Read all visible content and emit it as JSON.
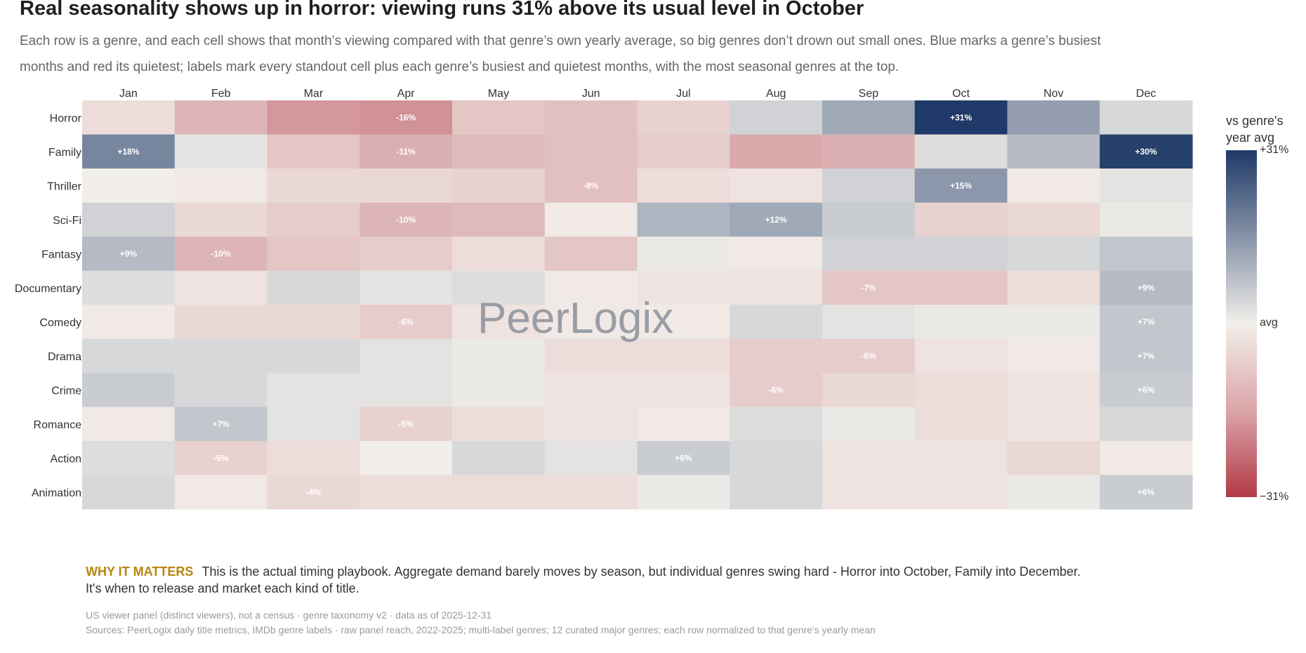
{
  "header": {
    "title": "Real seasonality shows up in horror: viewing runs 31% above its usual level in October",
    "subtitle": "Each row is a genre, and each cell shows that month’s viewing compared with that genre’s own yearly average, so big genres don’t drown out small ones. Blue marks a genre’s busiest months and red its quietest; labels mark every standout cell plus each genre’s busiest and quietest months, with the most seasonal genres at the top."
  },
  "watermark": "PeerLogix",
  "colors": {
    "max_blue": "#1f3a68",
    "neutral": "#f2efea",
    "min_red": "#b23a48",
    "label_text": "#ffffff"
  },
  "chart_data": {
    "type": "heatmap",
    "x_categories": [
      "Jan",
      "Feb",
      "Mar",
      "Apr",
      "May",
      "Jun",
      "Jul",
      "Aug",
      "Sep",
      "Oct",
      "Nov",
      "Dec"
    ],
    "y_categories": [
      "Horror",
      "Family",
      "Thriller",
      "Sci-Fi",
      "Fantasy",
      "Documentary",
      "Comedy",
      "Drama",
      "Crime",
      "Romance",
      "Action",
      "Animation"
    ],
    "values": [
      [
        -3,
        -10,
        -15,
        -16,
        -7,
        -8,
        -5,
        5,
        12,
        31,
        14,
        4
      ],
      [
        18,
        2,
        -7,
        -11,
        -9,
        -8,
        -6,
        -12,
        -11,
        3,
        9,
        30
      ],
      [
        0,
        -1,
        -4,
        -4,
        -5,
        -8,
        -3,
        -2,
        5,
        15,
        -1,
        2
      ],
      [
        5,
        -4,
        -6,
        -10,
        -9,
        -1,
        10,
        12,
        6,
        -5,
        -4,
        1
      ],
      [
        9,
        -10,
        -7,
        -6,
        -3,
        -7,
        1,
        -1,
        5,
        5,
        4,
        7
      ],
      [
        3,
        -2,
        4,
        2,
        3,
        -1,
        -2,
        -2,
        -7,
        -7,
        -3,
        9
      ],
      [
        -1,
        -4,
        -4,
        -6,
        -2,
        -1,
        -1,
        4,
        2,
        1,
        1,
        7
      ],
      [
        4,
        4,
        4,
        2,
        1,
        -3,
        -3,
        -6,
        -6,
        -2,
        -1,
        7
      ],
      [
        6,
        4,
        2,
        2,
        1,
        -2,
        -2,
        -6,
        -4,
        -3,
        -2,
        6
      ],
      [
        -1,
        7,
        2,
        -5,
        -3,
        -2,
        -1,
        3,
        1,
        -3,
        -2,
        4
      ],
      [
        3,
        -5,
        -3,
        0,
        4,
        2,
        6,
        4,
        -2,
        -2,
        -4,
        -1
      ],
      [
        4,
        -1,
        -4,
        -3,
        -3,
        -3,
        1,
        4,
        -2,
        -2,
        1,
        6
      ]
    ],
    "labels": [
      [
        "",
        "",
        "",
        "-16%",
        "",
        "",
        "",
        "",
        "",
        "+31%",
        "",
        ""
      ],
      [
        "+18%",
        "",
        "",
        "-11%",
        "",
        "",
        "",
        "",
        "",
        "",
        "",
        "+30%"
      ],
      [
        "",
        "",
        "",
        "",
        "",
        "-8%",
        "",
        "",
        "",
        "+15%",
        "",
        ""
      ],
      [
        "",
        "",
        "",
        "-10%",
        "",
        "",
        "",
        "+12%",
        "",
        "",
        "",
        ""
      ],
      [
        "+9%",
        "-10%",
        "",
        "",
        "",
        "",
        "",
        "",
        "",
        "",
        "",
        ""
      ],
      [
        "",
        "",
        "",
        "",
        "",
        "",
        "",
        "",
        "-7%",
        "",
        "",
        "+9%"
      ],
      [
        "",
        "",
        "",
        "-6%",
        "",
        "",
        "",
        "",
        "",
        "",
        "",
        "+7%"
      ],
      [
        "",
        "",
        "",
        "",
        "",
        "",
        "",
        "",
        "-6%",
        "",
        "",
        "+7%"
      ],
      [
        "",
        "",
        "",
        "",
        "",
        "",
        "",
        "-6%",
        "",
        "",
        "",
        "+6%"
      ],
      [
        "",
        "+7%",
        "",
        "-5%",
        "",
        "",
        "",
        "",
        "",
        "",
        "",
        ""
      ],
      [
        "",
        "-5%",
        "",
        "",
        "",
        "",
        "+6%",
        "",
        "",
        "",
        "",
        ""
      ],
      [
        "",
        "",
        "-4%",
        "",
        "",
        "",
        "",
        "",
        "",
        "",
        "",
        "+6%"
      ]
    ],
    "value_unit": "%",
    "color_scale": {
      "min": -31,
      "max": 31,
      "low_color": "red",
      "high_color": "blue"
    },
    "legend": {
      "title": "vs genre's year avg",
      "ticks": [
        "+31%",
        "avg",
        "−31%"
      ],
      "position": "right"
    }
  },
  "callout": {
    "label": "WHY IT MATTERS",
    "text": "This is the actual timing playbook. Aggregate demand barely moves by season, but individual genres swing hard - Horror into October, Family into December. It's when to release and market each kind of title."
  },
  "footnotes": [
    "US viewer panel (distinct viewers), not a census · genre taxonomy v2 · data as of 2025-12-31",
    "Sources: PeerLogix daily title metrics, IMDb genre labels · raw panel reach, 2022-2025; multi-label genres; 12 curated major genres; each row normalized to that genre's yearly mean"
  ]
}
